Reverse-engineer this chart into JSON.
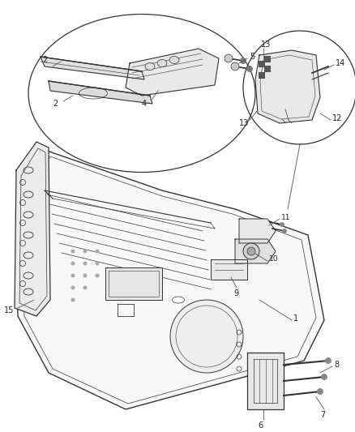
{
  "bg_color": "#ffffff",
  "line_color": "#333333",
  "label_color": "#222222",
  "fig_width": 4.39,
  "fig_height": 5.33,
  "dpi": 100
}
